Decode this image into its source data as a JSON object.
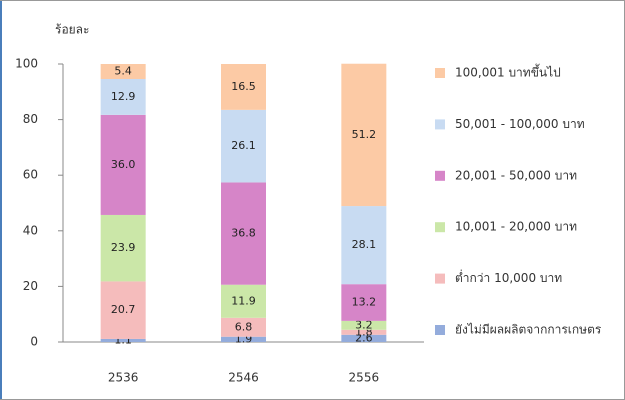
{
  "chart_data": {
    "type": "bar",
    "stacked": true,
    "y_label": "ร้อยละ",
    "categories": [
      "2536",
      "2546",
      "2556"
    ],
    "series": [
      {
        "name": "ยังไม่มีผลผลิตจากการเกษตร",
        "color": "#94acdc",
        "values": [
          1.1,
          1.9,
          2.6
        ]
      },
      {
        "name": "ต่ำกว่า 10,000 บาท",
        "color": "#f5bcbc",
        "values": [
          20.7,
          6.8,
          1.8
        ]
      },
      {
        "name": "10,001 - 20,000 บาท",
        "color": "#cbe7a8",
        "values": [
          23.9,
          11.9,
          3.2
        ]
      },
      {
        "name": "20,001 - 50,000 บาท",
        "color": "#d685c8",
        "values": [
          36.0,
          36.8,
          13.2
        ],
        "value_labels": [
          "36.0",
          "36.8",
          "13.2"
        ]
      },
      {
        "name": "50,001 - 100,000 บาท",
        "color": "#c8dbf2",
        "values": [
          12.9,
          26.1,
          28.1
        ]
      },
      {
        "name": "100,001 บาทขึ้นไป",
        "color": "#fccaa5",
        "values": [
          5.4,
          16.5,
          51.2
        ]
      }
    ],
    "ylim": [
      0,
      100
    ],
    "yticks": [
      0,
      20,
      40,
      60,
      80,
      100
    ],
    "grid": false,
    "legend": "right"
  }
}
